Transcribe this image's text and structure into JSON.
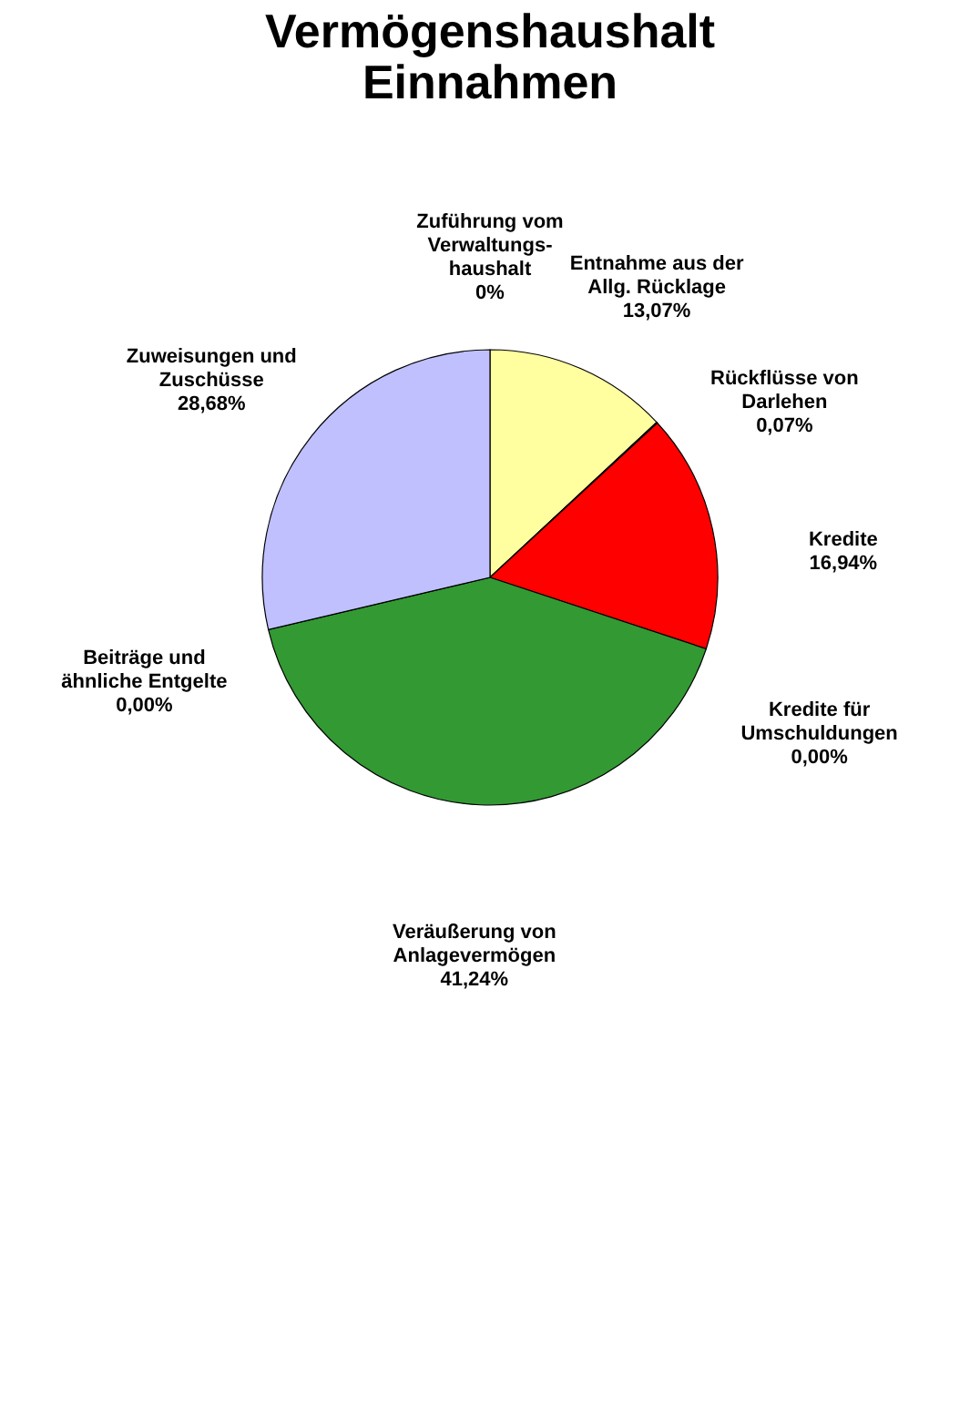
{
  "chart_data": {
    "type": "pie",
    "title": "Vermögenshaushalt\nEinnahmen",
    "categories": [
      "Zuführung vom\nVerwaltungs-\nhaushalt",
      "Entnahme aus der\nAllg. Rücklage",
      "Rückflüsse von\nDarlehen",
      "Kredite",
      "Kredite für\nUmschuldungen",
      "Veräußerung von\nAnlagevermögen",
      "Beiträge und\nähnliche Entgelte",
      "Zuweisungen und\nZuschüsse"
    ],
    "values": [
      0,
      13.07,
      0.07,
      16.94,
      0,
      41.24,
      0,
      28.68
    ],
    "value_labels": [
      "0%",
      "13,07%",
      "0,07%",
      "16,94%",
      "0,00%",
      "41,24%",
      "0,00%",
      "28,68%"
    ],
    "colors": [
      "#9999ff",
      "#ffffa0",
      "#800080",
      "#ff0000",
      "#800000",
      "#339933",
      "#666699",
      "#c0c0ff"
    ]
  }
}
